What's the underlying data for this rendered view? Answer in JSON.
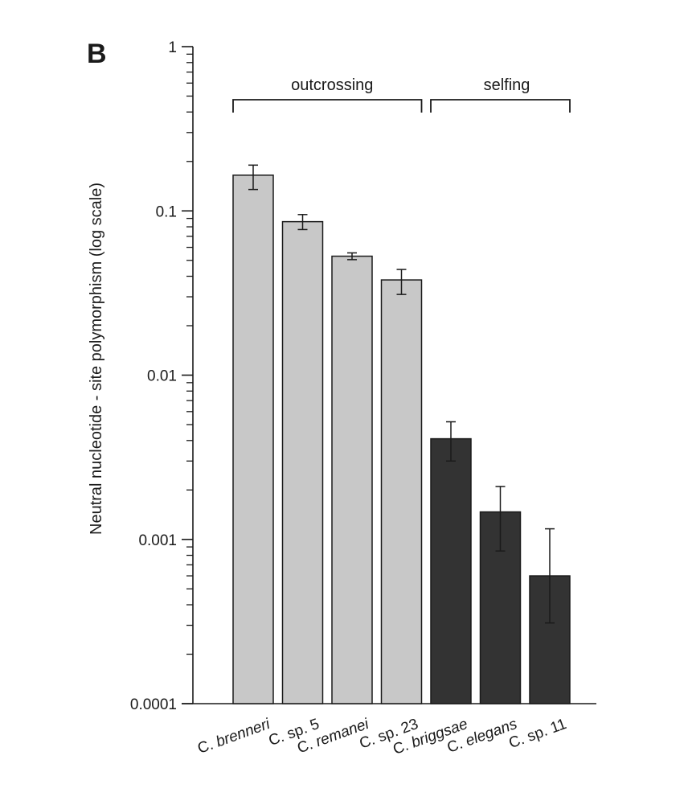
{
  "panel_label": "B",
  "chart_data": {
    "type": "bar",
    "yscale": "log",
    "ylim": [
      0.0001,
      1
    ],
    "ylabel": "Neutral nucleotide - site polymorphism (log scale)",
    "xlabel": "",
    "yticks": [
      "1",
      "0.1",
      "0.01",
      "0.001",
      "0.0001"
    ],
    "categories": [
      {
        "prefix": "C.",
        "name": "brenneri",
        "italic": true
      },
      {
        "prefix": "C.",
        "name": "sp. 5",
        "italic": false
      },
      {
        "prefix": "C.",
        "name": "remanei",
        "italic": true
      },
      {
        "prefix": "C.",
        "name": "sp. 23",
        "italic": false
      },
      {
        "prefix": "C.",
        "name": "briggsae",
        "italic": true
      },
      {
        "prefix": "C.",
        "name": "elegans",
        "italic": true
      },
      {
        "prefix": "C.",
        "name": "sp. 11",
        "italic": false
      }
    ],
    "values": [
      0.165,
      0.086,
      0.053,
      0.038,
      0.0041,
      0.00147,
      0.0006
    ],
    "error_low": [
      0.135,
      0.077,
      0.0505,
      0.031,
      0.003,
      0.00085,
      0.00031
    ],
    "error_high": [
      0.19,
      0.095,
      0.0555,
      0.044,
      0.0052,
      0.0021,
      0.00116
    ],
    "groups": [
      {
        "label": "outcrossing",
        "from": 0,
        "to": 3,
        "color": "#c8c8c8"
      },
      {
        "label": "selfing",
        "from": 4,
        "to": 6,
        "color": "#333333"
      }
    ]
  }
}
